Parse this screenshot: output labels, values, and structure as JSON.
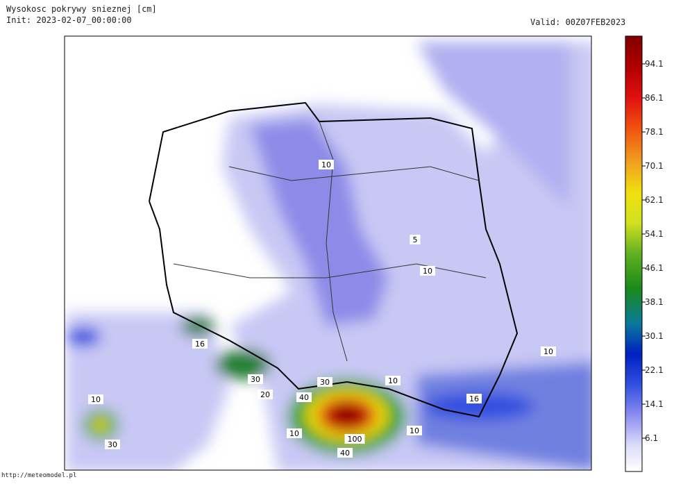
{
  "header": {
    "title": "Wysokosc pokrywy snieznej [cm]",
    "init": "Init: 2023-02-07_00:00:00",
    "valid": "Valid: 00Z07FEB2023"
  },
  "colorbar": {
    "labels": [
      "94.1",
      "86.1",
      "78.1",
      "70.1",
      "62.1",
      "54.1",
      "46.1",
      "38.1",
      "30.1",
      "22.1",
      "14.1",
      "6.1"
    ]
  },
  "map": {
    "labels": [
      "10",
      "5",
      "10",
      "16",
      "30",
      "20",
      "10",
      "30",
      "40",
      "16",
      "10",
      "10",
      "30",
      "10",
      "100",
      "10",
      "40"
    ]
  },
  "footer": {
    "url": "http://meteomodel.pl"
  }
}
